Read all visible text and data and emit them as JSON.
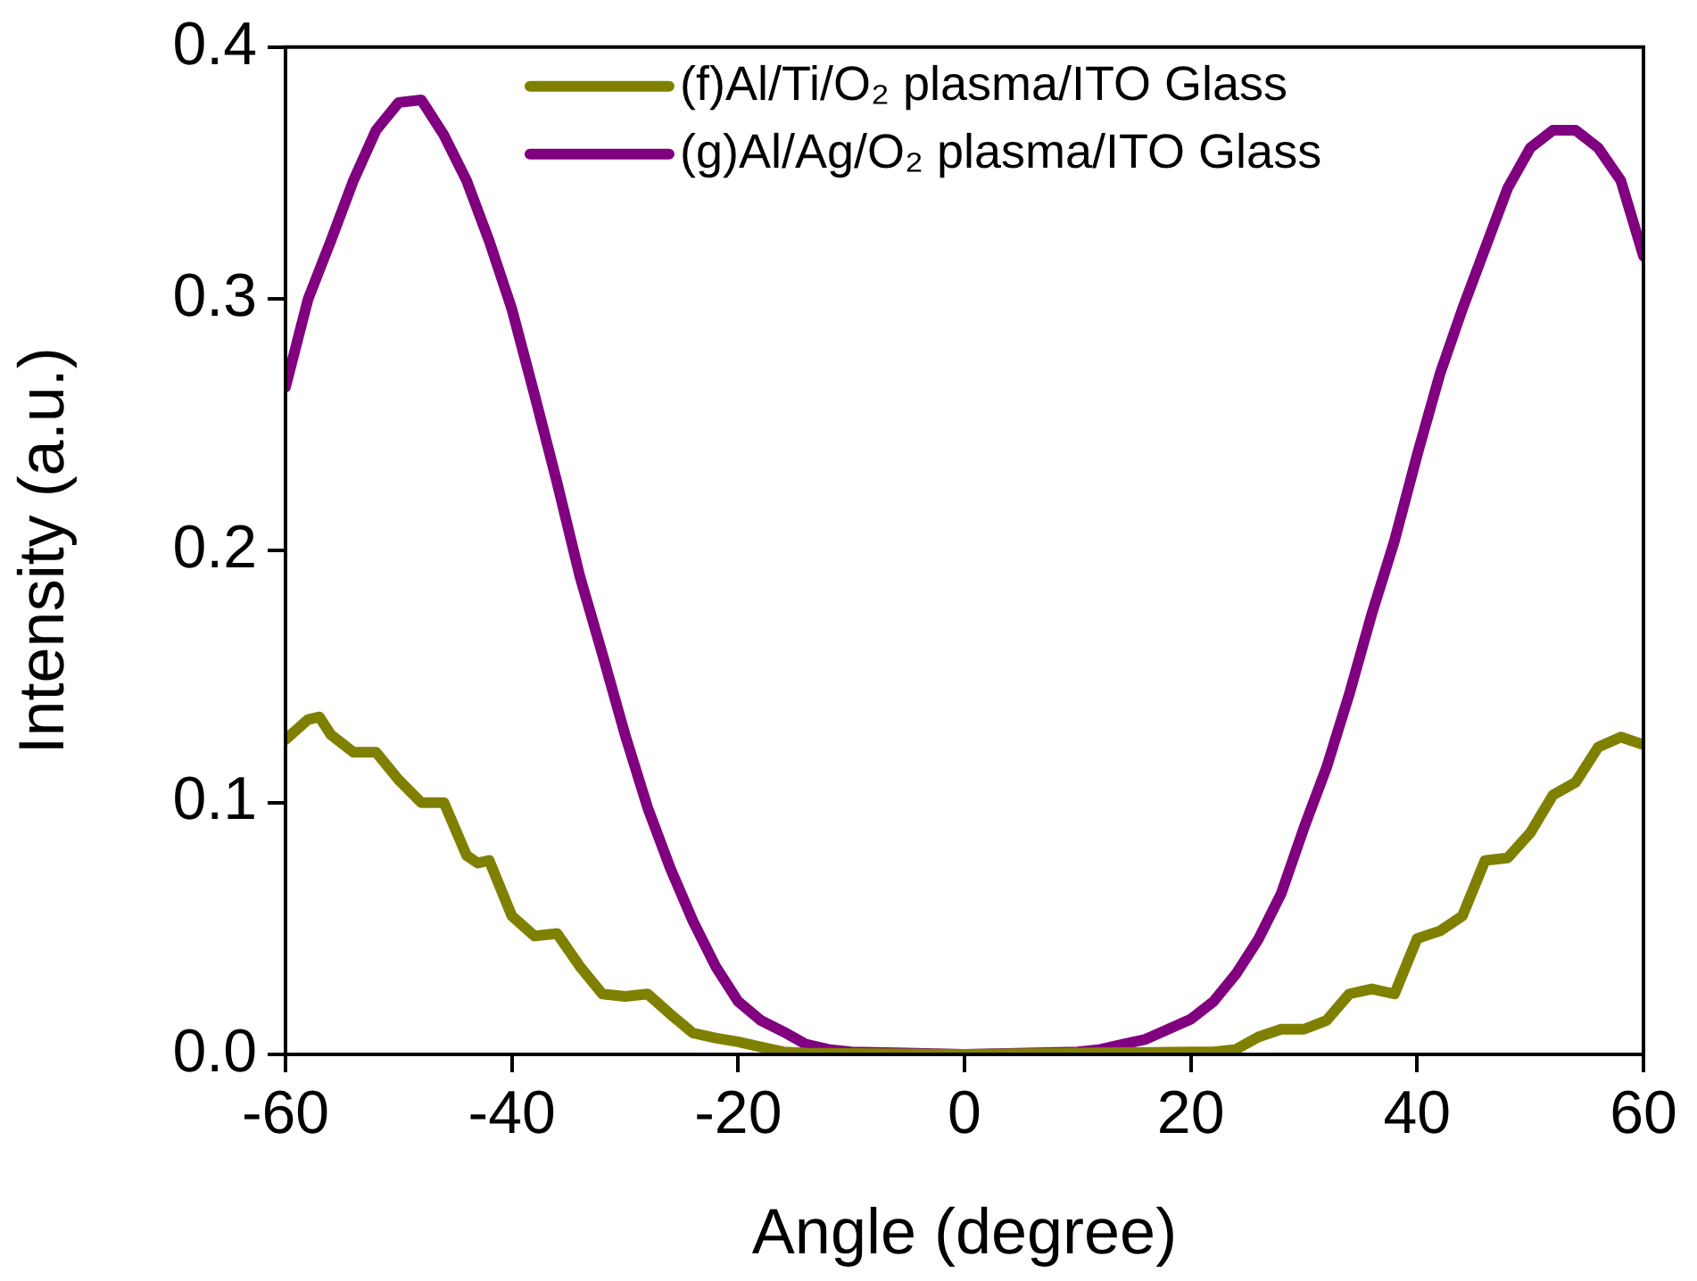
{
  "chart_data": {
    "type": "line",
    "xlabel": "Angle (degree)",
    "ylabel": "Intensity (a.u.)",
    "xlim": [
      -60,
      60
    ],
    "xticks": [
      -60,
      -40,
      -20,
      0,
      20,
      40,
      60
    ],
    "ylim": [
      0,
      0.4
    ],
    "yticks": [
      {
        "value": 0,
        "label": "0.0"
      },
      {
        "value": 0.1,
        "label": "0.1"
      },
      {
        "value": 0.2,
        "label": "0.2"
      },
      {
        "value": 0.3,
        "label": "0.3"
      },
      {
        "value": 0.4,
        "label": "0.4"
      }
    ],
    "grid": false,
    "legend": "top",
    "marker": "none",
    "line_style": "solid",
    "series": [
      {
        "name": "(f)Al/Ti/O₂ plasma/ITO Glass",
        "color": "#808000",
        "x": [
          -60,
          -58,
          -57,
          -56,
          -54,
          -52,
          -50,
          -48,
          -47,
          -46,
          -44,
          -43,
          -42,
          -40,
          -38,
          -36,
          -34,
          -32,
          -30,
          -28,
          -26,
          -24,
          -22,
          -20,
          -18,
          -16,
          -14,
          0,
          20,
          22,
          24,
          26,
          28,
          30,
          32,
          34,
          36,
          38,
          40,
          42,
          44,
          46,
          48,
          50,
          52,
          54,
          56,
          58,
          60
        ],
        "values": [
          0.125,
          0.133,
          0.134,
          0.127,
          0.12,
          0.12,
          0.109,
          0.1,
          0.1,
          0.1,
          0.079,
          0.076,
          0.077,
          0.055,
          0.047,
          0.048,
          0.035,
          0.024,
          0.023,
          0.024,
          0.016,
          0.0085,
          0.0065,
          0.005,
          0.003,
          0.001,
          0.0005,
          0,
          0.001,
          0.001,
          0.002,
          0.007,
          0.01,
          0.01,
          0.0135,
          0.024,
          0.026,
          0.024,
          0.046,
          0.049,
          0.055,
          0.077,
          0.078,
          0.088,
          0.103,
          0.108,
          0.122,
          0.126,
          0.123
        ]
      },
      {
        "name": "(g)Al/Ag/O₂ plasma/ITO Glass",
        "color": "#800080",
        "x": [
          -60,
          -58,
          -56,
          -54,
          -52,
          -50,
          -48,
          -46,
          -44,
          -42,
          -40,
          -38,
          -36,
          -34,
          -32,
          -30,
          -28,
          -26,
          -24,
          -22,
          -20,
          -18,
          -16,
          -14,
          -12,
          -10,
          0,
          10,
          12,
          14,
          16,
          18,
          20,
          22,
          24,
          26,
          28,
          30,
          32,
          34,
          36,
          38,
          40,
          42,
          44,
          46,
          48,
          50,
          52,
          54,
          56,
          58,
          60
        ],
        "values": [
          0.265,
          0.3,
          0.323,
          0.347,
          0.367,
          0.378,
          0.379,
          0.365,
          0.347,
          0.323,
          0.296,
          0.262,
          0.227,
          0.19,
          0.159,
          0.127,
          0.098,
          0.074,
          0.053,
          0.035,
          0.021,
          0.0135,
          0.009,
          0.004,
          0.002,
          0.001,
          0,
          0.001,
          0.002,
          0.004,
          0.006,
          0.01,
          0.014,
          0.021,
          0.032,
          0.046,
          0.064,
          0.09,
          0.114,
          0.143,
          0.175,
          0.204,
          0.238,
          0.27,
          0.296,
          0.32,
          0.344,
          0.36,
          0.367,
          0.367,
          0.36,
          0.347,
          0.317
        ]
      }
    ]
  }
}
